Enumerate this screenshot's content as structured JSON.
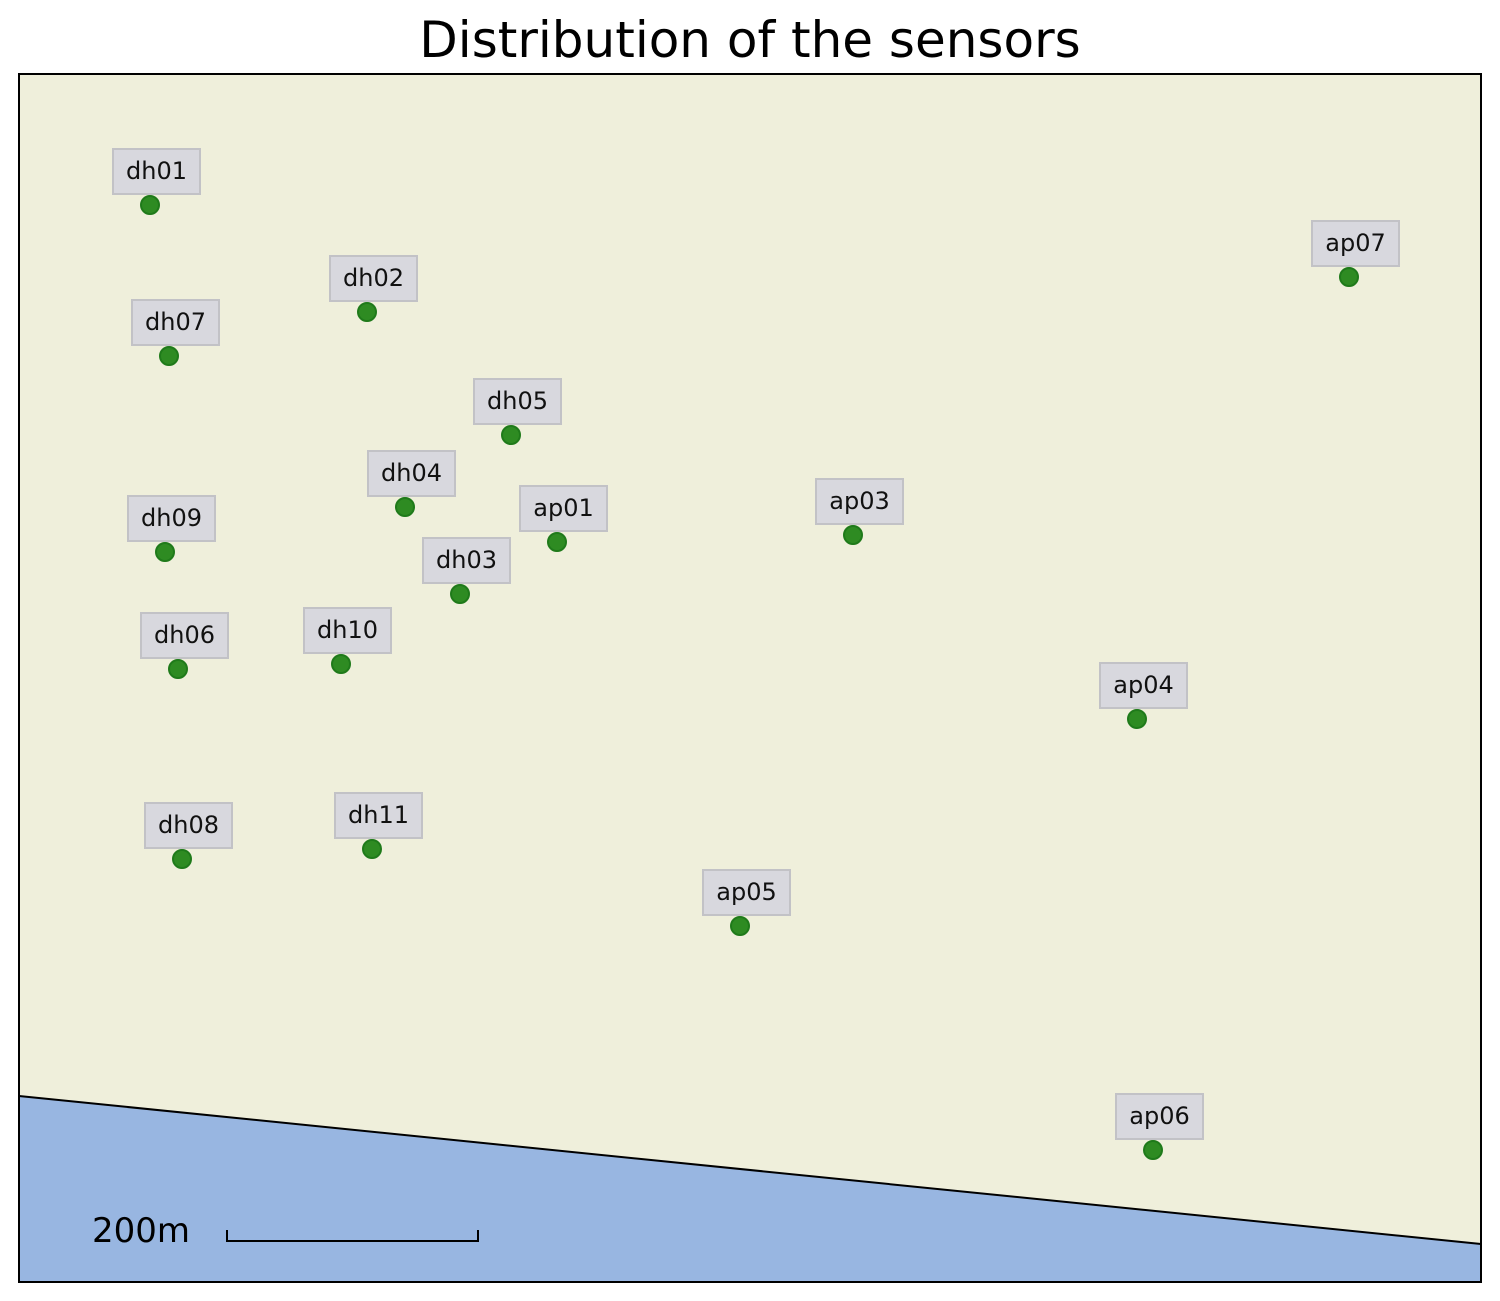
{
  "title": "Distribution of the sensors",
  "colors": {
    "land": "#efefdb",
    "water": "#98b6e1",
    "sensor_fill": "#2e8b22",
    "sensor_stroke": "#1f7a1a",
    "label_box": "#d8d8de",
    "label_box_border": "#c2c2c6",
    "frame": "#000000"
  },
  "scale_bar": {
    "label": "200m"
  },
  "sensors": [
    {
      "id": "dh01"
    },
    {
      "id": "dh02"
    },
    {
      "id": "dh07"
    },
    {
      "id": "dh05"
    },
    {
      "id": "dh04"
    },
    {
      "id": "ap01"
    },
    {
      "id": "dh09"
    },
    {
      "id": "dh03"
    },
    {
      "id": "ap03"
    },
    {
      "id": "dh06"
    },
    {
      "id": "dh10"
    },
    {
      "id": "ap04"
    },
    {
      "id": "dh08"
    },
    {
      "id": "dh11"
    },
    {
      "id": "ap05"
    },
    {
      "id": "ap06"
    },
    {
      "id": "ap07"
    }
  ]
}
